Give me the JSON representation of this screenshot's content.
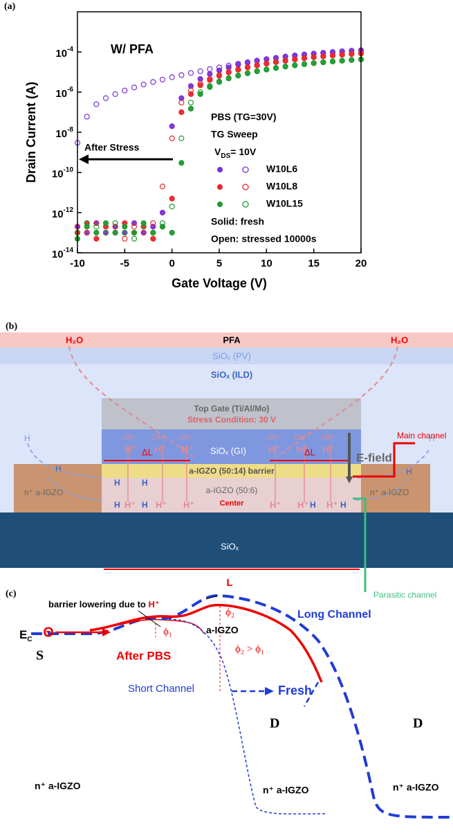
{
  "chart_data": {
    "type": "scatter",
    "panel_label": "(a)",
    "x_label": "Gate Voltage (V)",
    "y_label": "Drain Current (A)",
    "inset_title": "W/ PFA",
    "conditions": [
      "PBS (TG=30V)",
      "TG Sweep",
      "VDS= 10V"
    ],
    "legend_notes": [
      "Solid: fresh",
      "Open: stressed 10000s"
    ],
    "arrow_label": "After Stress",
    "log_y": true,
    "x": [
      -10,
      -9,
      -8,
      -7,
      -6,
      -5,
      -4,
      -3,
      -2,
      -1,
      0,
      1,
      2,
      3,
      4,
      5,
      6,
      7,
      8,
      9,
      10,
      11,
      12,
      13,
      14,
      15,
      16,
      17,
      18,
      19,
      20
    ],
    "series": [
      {
        "name": "W10L6",
        "color": "#7b2fd6",
        "fresh": [
          2e-13,
          1e-13,
          3e-13,
          1e-13,
          2e-13,
          1e-13,
          3e-13,
          1e-13,
          2e-13,
          1e-12,
          2e-08,
          5e-07,
          2e-06,
          4.5e-06,
          8e-06,
          1.2e-05,
          1.7e-05,
          2.3e-05,
          2.9e-05,
          3.6e-05,
          4.3e-05,
          5e-05,
          5.8e-05,
          6.6e-05,
          7.4e-05,
          8.2e-05,
          9e-05,
          9.8e-05,
          0.000106,
          0.000114,
          0.00012
        ],
        "stressed": [
          3e-09,
          6e-08,
          2.5e-07,
          5e-07,
          8e-07,
          1.2e-06,
          1.7e-06,
          2.4e-06,
          3.2e-06,
          4.2e-06,
          5.5e-06,
          7e-06,
          9e-06,
          1.1e-05,
          1.4e-05,
          1.7e-05,
          2.1e-05,
          2.6e-05,
          3.1e-05,
          3.7e-05,
          4.4e-05,
          5.1e-05,
          5.9e-05,
          6.7e-05,
          7.5e-05,
          8.3e-05,
          9.1e-05,
          9.9e-05,
          0.000107,
          0.000115,
          0.000122
        ]
      },
      {
        "name": "W10L8",
        "color": "#e8262a",
        "fresh": [
          1e-13,
          3e-13,
          5e-14,
          2e-13,
          1e-13,
          3e-13,
          1e-13,
          2e-13,
          5e-14,
          2e-13,
          5e-12,
          1e-07,
          8e-07,
          2.2e-06,
          4e-06,
          6.5e-06,
          9.5e-06,
          1.3e-05,
          1.7e-05,
          2.1e-05,
          2.6e-05,
          3.1e-05,
          3.6e-05,
          4.2e-05,
          4.8e-05,
          5.4e-05,
          6e-05,
          6.6e-05,
          7.2e-05,
          7.8e-05,
          8.4e-05
        ],
        "stressed": [
          2e-13,
          1e-13,
          3e-13,
          1e-13,
          2e-13,
          5e-14,
          2e-13,
          1e-13,
          3e-13,
          2e-11,
          5e-09,
          3e-07,
          1.2e-06,
          2.6e-06,
          4.5e-06,
          7e-06,
          1e-05,
          1.35e-05,
          1.75e-05,
          2.2e-05,
          2.7e-05,
          3.2e-05,
          3.7e-05,
          4.3e-05,
          4.9e-05,
          5.5e-05,
          6.1e-05,
          6.7e-05,
          7.3e-05,
          7.9e-05,
          8.5e-05
        ]
      },
      {
        "name": "W10L15",
        "color": "#1e9a2e",
        "fresh": [
          5e-14,
          2e-13,
          1e-13,
          3e-13,
          1e-13,
          2e-13,
          1e-13,
          3e-13,
          1e-13,
          2e-13,
          1e-13,
          3e-10,
          1.5e-07,
          8e-07,
          1.8e-06,
          3.2e-06,
          4.8e-06,
          6.6e-06,
          8.6e-06,
          1.08e-05,
          1.32e-05,
          1.58e-05,
          1.86e-05,
          2.15e-05,
          2.45e-05,
          2.75e-05,
          3.05e-05,
          3.35e-05,
          3.65e-05,
          3.95e-05,
          4.25e-05
        ],
        "stressed": [
          1e-13,
          3e-13,
          2e-13,
          1e-13,
          3e-13,
          1e-13,
          5e-14,
          2e-13,
          1e-13,
          3e-13,
          2e-12,
          5e-09,
          3e-07,
          1e-06,
          2e-06,
          3.4e-06,
          5e-06,
          6.8e-06,
          8.8e-06,
          1.1e-05,
          1.34e-05,
          1.6e-05,
          1.88e-05,
          2.17e-05,
          2.47e-05,
          2.77e-05,
          3.07e-05,
          3.37e-05,
          3.67e-05,
          3.97e-05,
          4.27e-05
        ]
      }
    ],
    "xlim": [
      -10,
      20
    ],
    "xticks": [
      -10,
      -5,
      0,
      5,
      10,
      15,
      20
    ],
    "ylim": [
      1e-14,
      0.01
    ],
    "yticks": [
      {
        "value": 1e-14,
        "label": "10-14"
      },
      {
        "value": 1e-12,
        "label": "10-12"
      },
      {
        "value": 1e-10,
        "label": "10-10"
      },
      {
        "value": 1e-08,
        "label": "10-8"
      },
      {
        "value": 1e-06,
        "label": "10-6"
      },
      {
        "value": 0.0001,
        "label": "10-4"
      }
    ]
  },
  "panel_b": {
    "panel_label": "(b)",
    "h2o": "H₂O",
    "pfa": "PFA",
    "pv": "SiOₓ (PV)",
    "ild": "SiOₓ (ILD)",
    "top_gate": "Top Gate (Ti/Al/Mo)",
    "stress": "Stress Condition: 30 V",
    "oh": "OH⁻",
    "h_plus": "H⁺",
    "h": "H",
    "gi": "SiOₓ (GI)",
    "efield": "E-field",
    "delta_l": "ΔL",
    "barrier": "a-IGZO (50:14) barrier",
    "channel": "a-IGZO (50:6)",
    "center": "Center",
    "n_plus": "n⁺ a-IGZO",
    "main": "Main channel",
    "substrate": "SiOₓ",
    "length": "L",
    "parasitic": "Parasitic channel"
  },
  "panel_c": {
    "panel_label": "(c)",
    "note": "barrier lowering due to ",
    "note_ion": "H⁺",
    "ec": "EC",
    "source": "S",
    "after": "After PBS",
    "igzo": "a-IGZO",
    "phi1": "ϕ₁",
    "phi2": "ϕ₂",
    "compare": "ϕ₂ > ϕ₁",
    "long": "Long Channel",
    "short": "Short Channel",
    "fresh": "Fresh",
    "drain": "D",
    "n_plus": "n⁺ a-IGZO",
    "electron": "Θ"
  }
}
